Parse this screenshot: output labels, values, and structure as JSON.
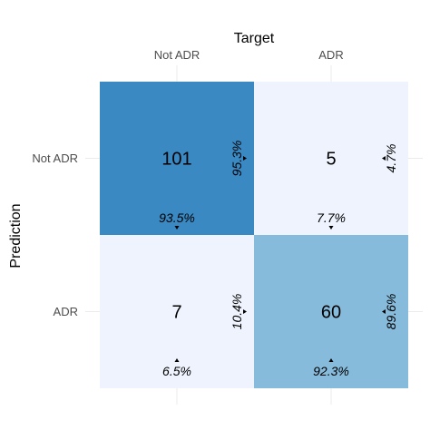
{
  "chart_data": {
    "type": "heatmap",
    "xlabel": "Target",
    "ylabel": "Prediction",
    "x_categories": [
      "Not ADR",
      "ADR"
    ],
    "y_categories": [
      "Not ADR",
      "ADR"
    ],
    "cells": [
      {
        "prediction": "Not ADR",
        "target": "Not ADR",
        "count": "101",
        "col_pct": "93.5%",
        "row_pct": "95.3%",
        "color": "#3b89c3"
      },
      {
        "prediction": "Not ADR",
        "target": "ADR",
        "count": "5",
        "col_pct": "7.7%",
        "row_pct": "4.7%",
        "color": "#eef3fd"
      },
      {
        "prediction": "ADR",
        "target": "Not ADR",
        "count": "7",
        "col_pct": "6.5%",
        "row_pct": "10.4%",
        "color": "#eef3fd"
      },
      {
        "prediction": "ADR",
        "target": "ADR",
        "count": "60",
        "col_pct": "92.3%",
        "row_pct": "89.6%",
        "color": "#87bbdc"
      }
    ],
    "grid": true
  }
}
